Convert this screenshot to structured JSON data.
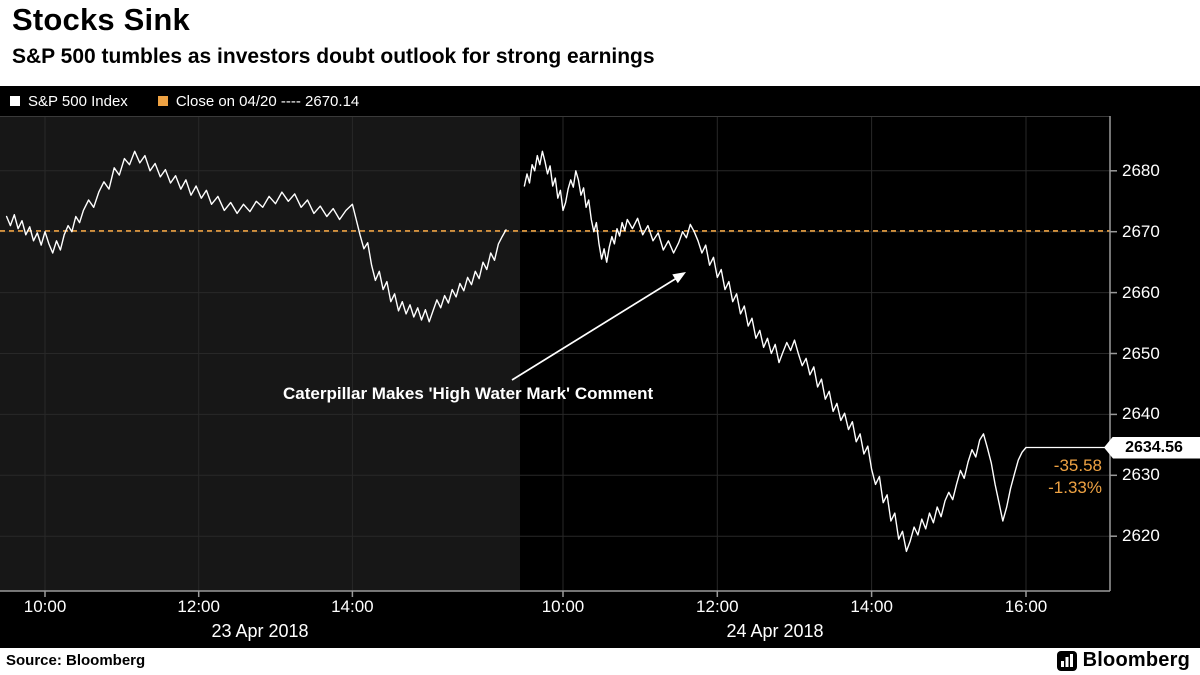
{
  "header": {
    "title": "Stocks Sink",
    "subtitle": "S&P 500 tumbles as investors doubt outlook for strong earnings"
  },
  "legend": {
    "series1": "S&P 500 Index",
    "series2": "Close on 04/20 ---- 2670.14"
  },
  "annotation": {
    "text": "Caterpillar Makes 'High Water Mark' Comment"
  },
  "price_labels": {
    "last": "2634.56",
    "net_change": "-35.58",
    "pct_change": "-1.33%"
  },
  "footer": {
    "source": "Source: Bloomberg",
    "logo": "Bloomberg"
  },
  "colors": {
    "page_bg": "#ffffff",
    "chart_bg": "#000000",
    "panel_alt": "#171717",
    "grid": "#282828",
    "axis": "#9a9a9a",
    "line": "#ffffff",
    "accent_orange": "#eea243",
    "text_light": "#ffffff",
    "text_dark": "#000000"
  },
  "chart_data": {
    "type": "line",
    "title": "Stocks Sink",
    "series_name": "S&P 500 Index",
    "x_unit": "minutes since 09:30",
    "ylim": [
      2611,
      2689
    ],
    "y_ticks": [
      2620,
      2630,
      2640,
      2650,
      2660,
      2670,
      2680
    ],
    "grid": true,
    "legend_position": "top",
    "reference_line": {
      "label": "Close on 04/20",
      "value": 2670.14
    },
    "last_price": 2634.56,
    "change": -35.58,
    "pct_change": -1.33,
    "days": [
      {
        "date": "23 Apr 2018",
        "x_ticks": [
          {
            "label": "10:00",
            "minute": 30
          },
          {
            "label": "12:00",
            "minute": 150
          },
          {
            "label": "14:00",
            "minute": 270
          }
        ],
        "points": [
          [
            0,
            2672.5
          ],
          [
            3,
            2671.0
          ],
          [
            6,
            2672.8
          ],
          [
            9,
            2670.5
          ],
          [
            12,
            2671.8
          ],
          [
            15,
            2669.5
          ],
          [
            18,
            2670.8
          ],
          [
            21,
            2668.5
          ],
          [
            24,
            2669.8
          ],
          [
            27,
            2667.8
          ],
          [
            30,
            2670.0
          ],
          [
            33,
            2668.0
          ],
          [
            36,
            2666.5
          ],
          [
            39,
            2668.5
          ],
          [
            42,
            2667.0
          ],
          [
            45,
            2669.5
          ],
          [
            48,
            2671.0
          ],
          [
            51,
            2670.0
          ],
          [
            54,
            2672.5
          ],
          [
            57,
            2671.5
          ],
          [
            60,
            2673.5
          ],
          [
            64,
            2675.2
          ],
          [
            68,
            2674.0
          ],
          [
            72,
            2676.5
          ],
          [
            76,
            2678.2
          ],
          [
            80,
            2677.0
          ],
          [
            84,
            2680.5
          ],
          [
            88,
            2679.3
          ],
          [
            92,
            2682.0
          ],
          [
            96,
            2681.0
          ],
          [
            100,
            2683.2
          ],
          [
            104,
            2681.3
          ],
          [
            108,
            2682.5
          ],
          [
            112,
            2680.0
          ],
          [
            116,
            2681.2
          ],
          [
            120,
            2679.0
          ],
          [
            124,
            2680.2
          ],
          [
            128,
            2678.0
          ],
          [
            132,
            2679.2
          ],
          [
            136,
            2677.0
          ],
          [
            140,
            2678.5
          ],
          [
            144,
            2676.0
          ],
          [
            148,
            2677.5
          ],
          [
            152,
            2675.5
          ],
          [
            156,
            2676.8
          ],
          [
            160,
            2674.5
          ],
          [
            165,
            2675.8
          ],
          [
            170,
            2673.5
          ],
          [
            175,
            2674.8
          ],
          [
            180,
            2673.0
          ],
          [
            185,
            2674.5
          ],
          [
            190,
            2673.3
          ],
          [
            195,
            2675.0
          ],
          [
            200,
            2674.0
          ],
          [
            205,
            2675.8
          ],
          [
            210,
            2674.6
          ],
          [
            215,
            2676.5
          ],
          [
            220,
            2675.0
          ],
          [
            225,
            2676.2
          ],
          [
            230,
            2674.0
          ],
          [
            235,
            2675.2
          ],
          [
            240,
            2673.0
          ],
          [
            245,
            2674.2
          ],
          [
            250,
            2672.5
          ],
          [
            255,
            2673.8
          ],
          [
            260,
            2672.0
          ],
          [
            265,
            2673.5
          ],
          [
            270,
            2674.5
          ],
          [
            273,
            2672.0
          ],
          [
            276,
            2669.5
          ],
          [
            279,
            2667.2
          ],
          [
            282,
            2668.2
          ],
          [
            285,
            2664.5
          ],
          [
            288,
            2662.0
          ],
          [
            291,
            2663.5
          ],
          [
            294,
            2660.5
          ],
          [
            297,
            2661.8
          ],
          [
            300,
            2658.5
          ],
          [
            303,
            2659.8
          ],
          [
            306,
            2657.0
          ],
          [
            309,
            2658.5
          ],
          [
            312,
            2656.5
          ],
          [
            315,
            2658.0
          ],
          [
            318,
            2656.0
          ],
          [
            321,
            2657.5
          ],
          [
            324,
            2655.5
          ],
          [
            327,
            2657.2
          ],
          [
            330,
            2655.2
          ],
          [
            333,
            2657.0
          ],
          [
            336,
            2658.8
          ],
          [
            339,
            2657.5
          ],
          [
            342,
            2659.5
          ],
          [
            345,
            2658.3
          ],
          [
            348,
            2660.5
          ],
          [
            351,
            2659.3
          ],
          [
            354,
            2661.5
          ],
          [
            357,
            2660.3
          ],
          [
            360,
            2662.5
          ],
          [
            363,
            2661.3
          ],
          [
            366,
            2663.5
          ],
          [
            369,
            2662.3
          ],
          [
            372,
            2665.0
          ],
          [
            375,
            2663.8
          ],
          [
            378,
            2666.5
          ],
          [
            381,
            2665.3
          ],
          [
            384,
            2668.0
          ],
          [
            387,
            2669.2
          ],
          [
            390,
            2670.3
          ]
        ]
      },
      {
        "date": "24 Apr 2018",
        "x_ticks": [
          {
            "label": "10:00",
            "minute": 30
          },
          {
            "label": "12:00",
            "minute": 150
          },
          {
            "label": "14:00",
            "minute": 270
          },
          {
            "label": "16:00",
            "minute": 390
          }
        ],
        "points": [
          [
            0,
            2677.5
          ],
          [
            2,
            2679.5
          ],
          [
            4,
            2678.0
          ],
          [
            6,
            2681.0
          ],
          [
            8,
            2680.0
          ],
          [
            10,
            2682.5
          ],
          [
            12,
            2681.0
          ],
          [
            14,
            2683.2
          ],
          [
            16,
            2681.5
          ],
          [
            18,
            2679.5
          ],
          [
            20,
            2680.8
          ],
          [
            22,
            2677.5
          ],
          [
            24,
            2678.8
          ],
          [
            26,
            2675.5
          ],
          [
            28,
            2676.8
          ],
          [
            30,
            2673.5
          ],
          [
            32,
            2674.8
          ],
          [
            34,
            2677.0
          ],
          [
            36,
            2678.5
          ],
          [
            38,
            2677.3
          ],
          [
            40,
            2680.0
          ],
          [
            42,
            2678.5
          ],
          [
            44,
            2676.0
          ],
          [
            46,
            2677.2
          ],
          [
            48,
            2674.0
          ],
          [
            50,
            2675.2
          ],
          [
            52,
            2672.0
          ],
          [
            54,
            2670.0
          ],
          [
            56,
            2671.5
          ],
          [
            58,
            2668.0
          ],
          [
            60,
            2665.5
          ],
          [
            62,
            2667.2
          ],
          [
            64,
            2665.0
          ],
          [
            66,
            2667.5
          ],
          [
            68,
            2669.2
          ],
          [
            70,
            2668.0
          ],
          [
            72,
            2670.5
          ],
          [
            74,
            2669.3
          ],
          [
            76,
            2671.5
          ],
          [
            78,
            2670.2
          ],
          [
            80,
            2672.0
          ],
          [
            84,
            2670.5
          ],
          [
            88,
            2672.2
          ],
          [
            92,
            2669.5
          ],
          [
            96,
            2671.0
          ],
          [
            100,
            2668.5
          ],
          [
            104,
            2669.8
          ],
          [
            108,
            2667.0
          ],
          [
            112,
            2668.5
          ],
          [
            116,
            2666.5
          ],
          [
            120,
            2668.2
          ],
          [
            123,
            2670.0
          ],
          [
            126,
            2669.0
          ],
          [
            129,
            2671.2
          ],
          [
            132,
            2670.0
          ],
          [
            135,
            2668.5
          ],
          [
            138,
            2666.5
          ],
          [
            141,
            2667.8
          ],
          [
            144,
            2664.5
          ],
          [
            147,
            2665.8
          ],
          [
            150,
            2662.5
          ],
          [
            153,
            2663.8
          ],
          [
            156,
            2660.5
          ],
          [
            159,
            2661.8
          ],
          [
            162,
            2658.5
          ],
          [
            165,
            2659.8
          ],
          [
            168,
            2656.5
          ],
          [
            171,
            2657.8
          ],
          [
            174,
            2654.5
          ],
          [
            177,
            2655.8
          ],
          [
            180,
            2652.5
          ],
          [
            183,
            2653.8
          ],
          [
            186,
            2651.0
          ],
          [
            189,
            2652.5
          ],
          [
            192,
            2650.0
          ],
          [
            195,
            2651.5
          ],
          [
            198,
            2648.5
          ],
          [
            201,
            2650.2
          ],
          [
            204,
            2651.8
          ],
          [
            207,
            2650.5
          ],
          [
            210,
            2652.2
          ],
          [
            213,
            2650.0
          ],
          [
            216,
            2648.0
          ],
          [
            219,
            2649.2
          ],
          [
            222,
            2646.5
          ],
          [
            225,
            2647.8
          ],
          [
            228,
            2644.5
          ],
          [
            231,
            2645.8
          ],
          [
            234,
            2642.5
          ],
          [
            237,
            2643.8
          ],
          [
            240,
            2640.5
          ],
          [
            243,
            2641.8
          ],
          [
            246,
            2639.0
          ],
          [
            249,
            2640.2
          ],
          [
            252,
            2637.5
          ],
          [
            255,
            2638.8
          ],
          [
            258,
            2635.5
          ],
          [
            261,
            2636.8
          ],
          [
            264,
            2633.5
          ],
          [
            267,
            2634.8
          ],
          [
            270,
            2631.0
          ],
          [
            273,
            2628.5
          ],
          [
            276,
            2629.8
          ],
          [
            279,
            2625.5
          ],
          [
            282,
            2626.8
          ],
          [
            285,
            2622.5
          ],
          [
            288,
            2623.8
          ],
          [
            291,
            2619.5
          ],
          [
            294,
            2620.8
          ],
          [
            297,
            2617.5
          ],
          [
            300,
            2619.2
          ],
          [
            303,
            2621.5
          ],
          [
            306,
            2620.2
          ],
          [
            309,
            2622.8
          ],
          [
            312,
            2621.2
          ],
          [
            315,
            2623.8
          ],
          [
            318,
            2622.2
          ],
          [
            321,
            2624.8
          ],
          [
            324,
            2623.2
          ],
          [
            327,
            2625.8
          ],
          [
            330,
            2627.2
          ],
          [
            333,
            2626.0
          ],
          [
            336,
            2628.5
          ],
          [
            339,
            2630.8
          ],
          [
            342,
            2629.5
          ],
          [
            345,
            2632.2
          ],
          [
            348,
            2634.2
          ],
          [
            351,
            2633.0
          ],
          [
            354,
            2635.8
          ],
          [
            357,
            2636.8
          ],
          [
            360,
            2634.5
          ],
          [
            363,
            2632.0
          ],
          [
            366,
            2628.5
          ],
          [
            369,
            2625.5
          ],
          [
            372,
            2622.5
          ],
          [
            375,
            2624.8
          ],
          [
            378,
            2627.8
          ],
          [
            381,
            2630.2
          ],
          [
            384,
            2632.5
          ],
          [
            387,
            2633.8
          ],
          [
            390,
            2634.56
          ]
        ]
      }
    ]
  }
}
